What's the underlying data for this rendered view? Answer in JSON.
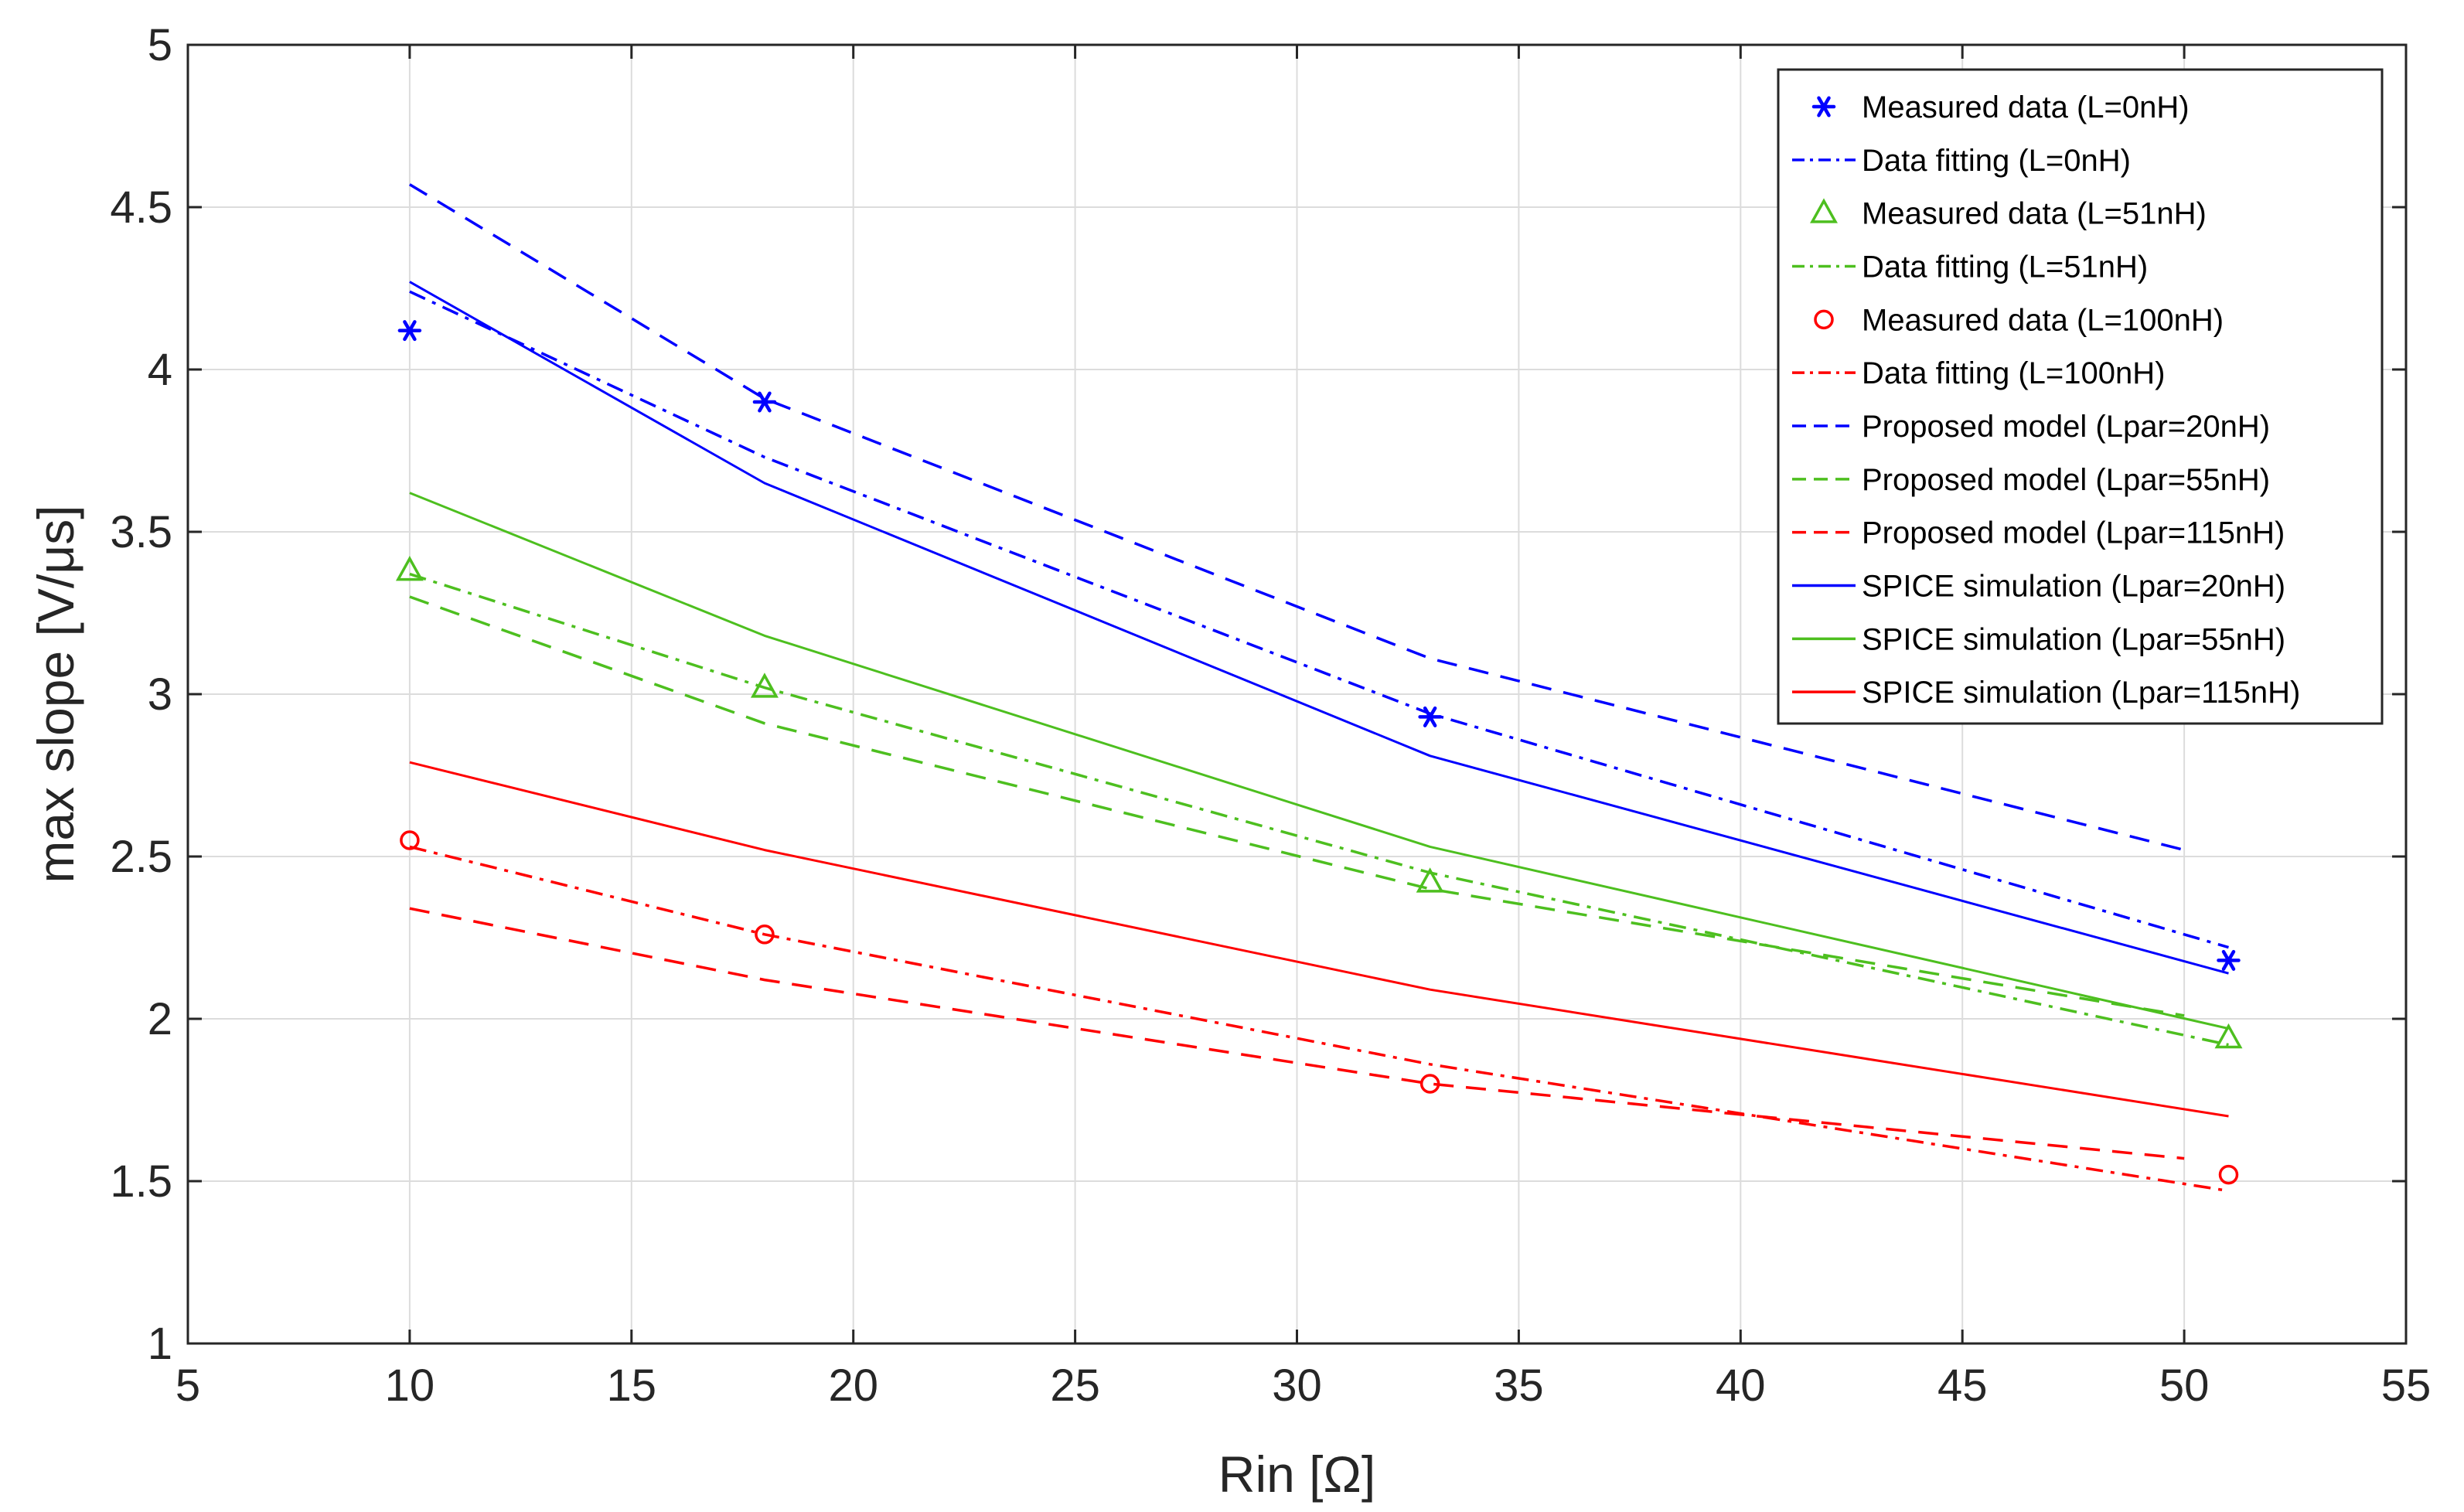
{
  "chart_data": {
    "type": "line",
    "title": "",
    "xlabel": "Rin [Ω]",
    "ylabel": "max slope [V/μs]",
    "xlim": [
      5,
      55
    ],
    "ylim": [
      1,
      5
    ],
    "xticks": [
      "5",
      "10",
      "15",
      "20",
      "25",
      "30",
      "35",
      "40",
      "45",
      "50",
      "55"
    ],
    "yticks": [
      "1",
      "1.5",
      "2",
      "2.5",
      "3",
      "3.5",
      "4",
      "4.5",
      "5"
    ],
    "grid": true,
    "legend_position": "top-right",
    "colors": {
      "blue": "#0000ff",
      "green": "#4dbf1f",
      "red": "#ff0000",
      "grid": "#dcdcdc",
      "axis": "#262626"
    },
    "series": [
      {
        "name": "Measured data (L=0nH)",
        "color": "blue",
        "style": "marker",
        "marker": "asterisk",
        "x": [
          10,
          18,
          33,
          51
        ],
        "y": [
          4.12,
          3.9,
          2.93,
          2.18
        ]
      },
      {
        "name": "Data fitting (L=0nH)",
        "color": "blue",
        "style": "dashdot",
        "x": [
          10,
          18,
          33,
          51
        ],
        "y": [
          4.24,
          3.73,
          2.94,
          2.22
        ]
      },
      {
        "name": "Measured data (L=51nH)",
        "color": "green",
        "style": "marker",
        "marker": "triangle",
        "x": [
          10,
          18,
          33,
          51
        ],
        "y": [
          3.38,
          3.02,
          2.42,
          1.94
        ]
      },
      {
        "name": "Data fitting (L=51nH)",
        "color": "green",
        "style": "dashdot",
        "x": [
          10,
          18,
          33,
          51
        ],
        "y": [
          3.37,
          3.02,
          2.45,
          1.92
        ]
      },
      {
        "name": "Measured data (L=100nH)",
        "color": "red",
        "style": "marker",
        "marker": "circle",
        "x": [
          10,
          18,
          33,
          51
        ],
        "y": [
          2.55,
          2.26,
          1.8,
          1.52
        ]
      },
      {
        "name": "Data fitting (L=100nH)",
        "color": "red",
        "style": "dashdot",
        "x": [
          10,
          18,
          33,
          51
        ],
        "y": [
          2.53,
          2.26,
          1.86,
          1.47
        ]
      },
      {
        "name": "Proposed model (Lpar=20nH)",
        "color": "blue",
        "style": "dashed",
        "x": [
          10,
          18,
          33,
          50
        ],
        "y": [
          4.57,
          3.91,
          3.11,
          2.52
        ]
      },
      {
        "name": "Proposed model (Lpar=55nH)",
        "color": "green",
        "style": "dashed",
        "x": [
          10,
          18,
          33,
          50
        ],
        "y": [
          3.3,
          2.91,
          2.4,
          2.01
        ]
      },
      {
        "name": "Proposed model (Lpar=115nH)",
        "color": "red",
        "style": "dashed",
        "x": [
          10,
          18,
          33,
          50
        ],
        "y": [
          2.34,
          2.12,
          1.8,
          1.57
        ]
      },
      {
        "name": "SPICE simulation (Lpar=20nH)",
        "color": "blue",
        "style": "solid",
        "x": [
          10,
          18,
          33,
          51
        ],
        "y": [
          4.27,
          3.65,
          2.81,
          2.14
        ]
      },
      {
        "name": "SPICE simulation (Lpar=55nH)",
        "color": "green",
        "style": "solid",
        "x": [
          10,
          18,
          33,
          51
        ],
        "y": [
          3.62,
          3.18,
          2.53,
          1.97
        ]
      },
      {
        "name": "SPICE simulation (Lpar=115nH)",
        "color": "red",
        "style": "solid",
        "x": [
          10,
          18,
          33,
          51
        ],
        "y": [
          2.79,
          2.52,
          2.09,
          1.7
        ]
      }
    ]
  }
}
